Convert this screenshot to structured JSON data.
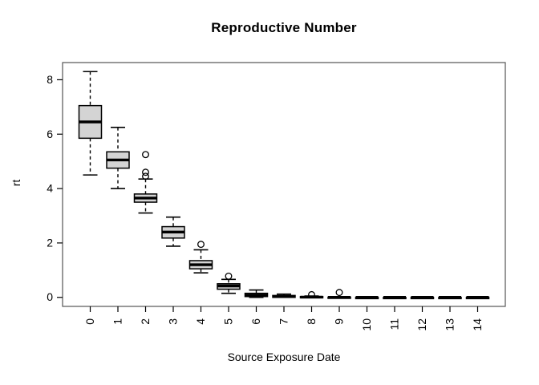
{
  "chart_data": {
    "type": "boxplot",
    "title": "Reproductive Number",
    "xlabel": "Source Exposure Date",
    "ylabel": "rt",
    "categories": [
      "0",
      "1",
      "2",
      "3",
      "4",
      "5",
      "6",
      "7",
      "8",
      "9",
      "10",
      "11",
      "12",
      "13",
      "14"
    ],
    "y_ticks": [
      0,
      2,
      4,
      6,
      8
    ],
    "ylim": [
      0,
      8.3
    ],
    "grid": false,
    "legend": "none",
    "box_fill_color": "#d4d4d4",
    "line_color": "#000000",
    "frame_color": "#555555",
    "series": [
      {
        "category": "0",
        "low": 4.5,
        "q1": 5.85,
        "median": 6.45,
        "q3": 7.05,
        "high": 8.3,
        "outliers": []
      },
      {
        "category": "1",
        "low": 4.0,
        "q1": 4.75,
        "median": 5.05,
        "q3": 5.35,
        "high": 6.25,
        "outliers": []
      },
      {
        "category": "2",
        "low": 3.1,
        "q1": 3.5,
        "median": 3.65,
        "q3": 3.8,
        "high": 4.35,
        "outliers": [
          4.45,
          4.6,
          5.25
        ]
      },
      {
        "category": "3",
        "low": 1.88,
        "q1": 2.18,
        "median": 2.4,
        "q3": 2.6,
        "high": 2.95,
        "outliers": []
      },
      {
        "category": "4",
        "low": 0.9,
        "q1": 1.05,
        "median": 1.2,
        "q3": 1.35,
        "high": 1.75,
        "outliers": [
          1.95
        ]
      },
      {
        "category": "5",
        "low": 0.15,
        "q1": 0.3,
        "median": 0.42,
        "q3": 0.5,
        "high": 0.66,
        "outliers": [
          0.78
        ]
      },
      {
        "category": "6",
        "low": 0.0,
        "q1": 0.03,
        "median": 0.08,
        "q3": 0.15,
        "high": 0.27,
        "outliers": []
      },
      {
        "category": "7",
        "low": 0.0,
        "q1": 0.0,
        "median": 0.03,
        "q3": 0.07,
        "high": 0.12,
        "outliers": []
      },
      {
        "category": "8",
        "low": 0.0,
        "q1": 0.0,
        "median": 0.01,
        "q3": 0.03,
        "high": 0.05,
        "outliers": [
          0.1
        ]
      },
      {
        "category": "9",
        "low": 0.0,
        "q1": 0.0,
        "median": 0.0,
        "q3": 0.01,
        "high": 0.02,
        "outliers": [
          0.18
        ]
      },
      {
        "category": "10",
        "low": 0.0,
        "q1": 0.0,
        "median": 0.0,
        "q3": 0.0,
        "high": 0.0,
        "outliers": []
      },
      {
        "category": "11",
        "low": 0.0,
        "q1": 0.0,
        "median": 0.0,
        "q3": 0.0,
        "high": 0.0,
        "outliers": []
      },
      {
        "category": "12",
        "low": 0.0,
        "q1": 0.0,
        "median": 0.0,
        "q3": 0.0,
        "high": 0.0,
        "outliers": []
      },
      {
        "category": "13",
        "low": 0.0,
        "q1": 0.0,
        "median": 0.0,
        "q3": 0.0,
        "high": 0.0,
        "outliers": []
      },
      {
        "category": "14",
        "low": 0.0,
        "q1": 0.0,
        "median": 0.0,
        "q3": 0.0,
        "high": 0.0,
        "outliers": []
      }
    ]
  }
}
